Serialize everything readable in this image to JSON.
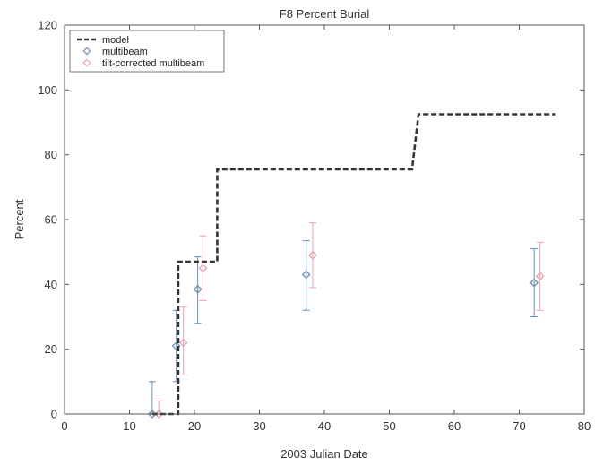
{
  "chart_data": {
    "type": "line",
    "title": "F8 Percent Burial",
    "xlabel": "2003 Julian Date",
    "ylabel": "Percent",
    "xlim": [
      0,
      80
    ],
    "ylim": [
      0,
      120
    ],
    "xticks": [
      0,
      10,
      20,
      30,
      40,
      50,
      60,
      70,
      80
    ],
    "yticks": [
      0,
      20,
      40,
      60,
      80,
      100,
      120
    ],
    "grid": false,
    "legend_position": "top-left",
    "series": [
      {
        "name": "model",
        "kind": "step-line",
        "style": "dashed",
        "color": "#333333",
        "x": [
          13.5,
          17.5,
          17.5,
          21.0,
          21.0,
          23.5,
          23.5,
          30.0,
          53.5,
          54.5,
          54.5,
          75.5
        ],
        "y": [
          0,
          0,
          47,
          47,
          47,
          47,
          75.5,
          75.5,
          75.5,
          92.5,
          92.5,
          92.5
        ]
      },
      {
        "name": "multibeam",
        "kind": "errorbar-markers",
        "marker": "diamond",
        "color": "#6a8fb5",
        "points": [
          {
            "x": 13.5,
            "y": 0,
            "low": 0,
            "high": 10
          },
          {
            "x": 17.2,
            "y": 21,
            "low": 10,
            "high": 32
          },
          {
            "x": 20.5,
            "y": 38.5,
            "low": 28,
            "high": 48.5
          },
          {
            "x": 37.2,
            "y": 43,
            "low": 32,
            "high": 53.5
          },
          {
            "x": 72.3,
            "y": 40.5,
            "low": 30,
            "high": 51
          }
        ]
      },
      {
        "name": "tilt-corrected multibeam",
        "kind": "errorbar-markers",
        "marker": "diamond",
        "color": "#e8a0b4",
        "points": [
          {
            "x": 14.5,
            "y": 0,
            "low": 0,
            "high": 4
          },
          {
            "x": 18.3,
            "y": 22,
            "low": 12,
            "high": 33
          },
          {
            "x": 21.3,
            "y": 45,
            "low": 35,
            "high": 55
          },
          {
            "x": 38.2,
            "y": 49,
            "low": 39,
            "high": 59
          },
          {
            "x": 73.2,
            "y": 42.5,
            "low": 32,
            "high": 53
          }
        ]
      }
    ]
  }
}
